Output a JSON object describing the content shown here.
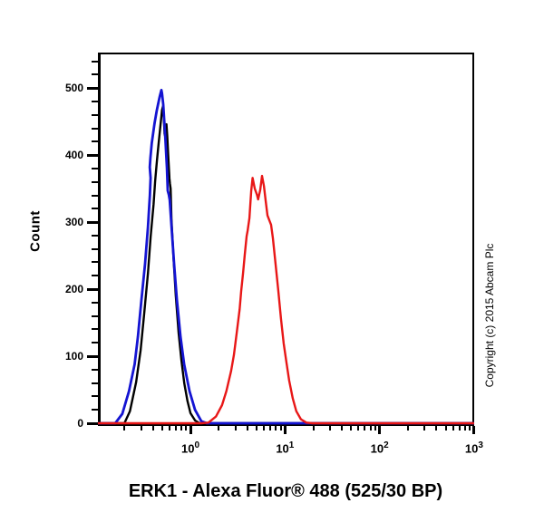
{
  "title": "ERK1 - Alexa Fluor® 488 (525/30 BP)",
  "copyright": "Copyright (c) 2015 Abcam Plc",
  "chart_data": {
    "type": "line",
    "subtype": "flow-cytometry-histogram",
    "title": "ERK1 - Alexa Fluor® 488 (525/30 BP)",
    "xlabel": "ERK1 - Alexa Fluor® 488 (525/30 BP)",
    "ylabel": "Count",
    "x_scale": "log",
    "xlim": [
      0.105,
      1000
    ],
    "ylim": [
      0,
      553
    ],
    "grid": false,
    "legend": "none",
    "y_major_ticks": [
      0,
      100,
      200,
      300,
      400,
      500
    ],
    "y_minor_ticks": [
      20,
      40,
      60,
      80,
      120,
      140,
      160,
      180,
      220,
      240,
      260,
      280,
      320,
      340,
      360,
      380,
      420,
      440,
      460,
      480,
      520,
      540
    ],
    "x_major_ticks": [
      {
        "value": 1,
        "base": "10",
        "exp": "0"
      },
      {
        "value": 10,
        "base": "10",
        "exp": "1"
      },
      {
        "value": 100,
        "base": "10",
        "exp": "2"
      },
      {
        "value": 1000,
        "base": "10",
        "exp": "3"
      }
    ],
    "x_minor_ticks": [
      0.2,
      0.3,
      0.4,
      0.5,
      0.6,
      0.7,
      0.8,
      0.9,
      2,
      3,
      4,
      5,
      6,
      7,
      8,
      9,
      20,
      30,
      40,
      50,
      60,
      70,
      80,
      90,
      200,
      300,
      400,
      500,
      600,
      700,
      800,
      900
    ],
    "series": [
      {
        "name": "black-curve",
        "color": "#000000",
        "stroke_width": 2.4,
        "points": [
          [
            0.105,
            0
          ],
          [
            0.2,
            0
          ],
          [
            0.229,
            18
          ],
          [
            0.266,
            61
          ],
          [
            0.297,
            109
          ],
          [
            0.324,
            163
          ],
          [
            0.355,
            224
          ],
          [
            0.38,
            279
          ],
          [
            0.407,
            327
          ],
          [
            0.423,
            361
          ],
          [
            0.442,
            392
          ],
          [
            0.461,
            418
          ],
          [
            0.483,
            446
          ],
          [
            0.5,
            467
          ],
          [
            0.513,
            473
          ],
          [
            0.524,
            452
          ],
          [
            0.532,
            432
          ],
          [
            0.54,
            428
          ],
          [
            0.55,
            441
          ],
          [
            0.557,
            446
          ],
          [
            0.568,
            428
          ],
          [
            0.583,
            398
          ],
          [
            0.6,
            365
          ],
          [
            0.608,
            357
          ],
          [
            0.617,
            350
          ],
          [
            0.63,
            305
          ],
          [
            0.66,
            248
          ],
          [
            0.7,
            190
          ],
          [
            0.75,
            135
          ],
          [
            0.8,
            95
          ],
          [
            0.86,
            60
          ],
          [
            0.93,
            33
          ],
          [
            1.0,
            15
          ],
          [
            1.12,
            4
          ],
          [
            1.25,
            0
          ],
          [
            1000,
            0
          ]
        ]
      },
      {
        "name": "blue-curve",
        "color": "#1414d2",
        "stroke_width": 2.8,
        "points": [
          [
            0.105,
            0
          ],
          [
            0.16,
            0
          ],
          [
            0.19,
            14
          ],
          [
            0.224,
            48
          ],
          [
            0.257,
            88
          ],
          [
            0.278,
            129
          ],
          [
            0.303,
            184
          ],
          [
            0.331,
            238
          ],
          [
            0.355,
            293
          ],
          [
            0.372,
            340
          ],
          [
            0.379,
            366
          ],
          [
            0.371,
            382
          ],
          [
            0.377,
            396
          ],
          [
            0.39,
            418
          ],
          [
            0.417,
            448
          ],
          [
            0.442,
            468
          ],
          [
            0.472,
            487
          ],
          [
            0.493,
            497
          ],
          [
            0.5,
            492
          ],
          [
            0.515,
            476
          ],
          [
            0.54,
            429
          ],
          [
            0.564,
            381
          ],
          [
            0.575,
            347
          ],
          [
            0.59,
            341
          ],
          [
            0.603,
            333
          ],
          [
            0.631,
            293
          ],
          [
            0.671,
            238
          ],
          [
            0.718,
            184
          ],
          [
            0.785,
            129
          ],
          [
            0.857,
            88
          ],
          [
            0.977,
            48
          ],
          [
            1.117,
            20
          ],
          [
            1.303,
            3
          ],
          [
            1.489,
            0
          ],
          [
            1000,
            0
          ]
        ]
      },
      {
        "name": "red-curve",
        "color": "#e81717",
        "stroke_width": 2.4,
        "points": [
          [
            0.105,
            0
          ],
          [
            1.3,
            0
          ],
          [
            1.55,
            1
          ],
          [
            1.86,
            10
          ],
          [
            2.16,
            27
          ],
          [
            2.4,
            48
          ],
          [
            2.69,
            78
          ],
          [
            2.88,
            102
          ],
          [
            3.09,
            136
          ],
          [
            3.31,
            170
          ],
          [
            3.44,
            197
          ],
          [
            3.6,
            224
          ],
          [
            3.76,
            252
          ],
          [
            3.93,
            279
          ],
          [
            4.02,
            287
          ],
          [
            4.2,
            306
          ],
          [
            4.3,
            327
          ],
          [
            4.39,
            347
          ],
          [
            4.54,
            366
          ],
          [
            4.79,
            350
          ],
          [
            5.05,
            341
          ],
          [
            5.2,
            334
          ],
          [
            5.47,
            348
          ],
          [
            5.71,
            369
          ],
          [
            5.98,
            354
          ],
          [
            6.25,
            331
          ],
          [
            6.53,
            310
          ],
          [
            6.82,
            303
          ],
          [
            7.13,
            296
          ],
          [
            7.45,
            276
          ],
          [
            7.94,
            238
          ],
          [
            8.51,
            197
          ],
          [
            9.06,
            156
          ],
          [
            9.68,
            119
          ],
          [
            10.35,
            91
          ],
          [
            11.05,
            64
          ],
          [
            12.08,
            37
          ],
          [
            13.18,
            18
          ],
          [
            14.72,
            6
          ],
          [
            16.83,
            1
          ],
          [
            19.6,
            0
          ],
          [
            1000,
            0
          ]
        ]
      }
    ]
  }
}
